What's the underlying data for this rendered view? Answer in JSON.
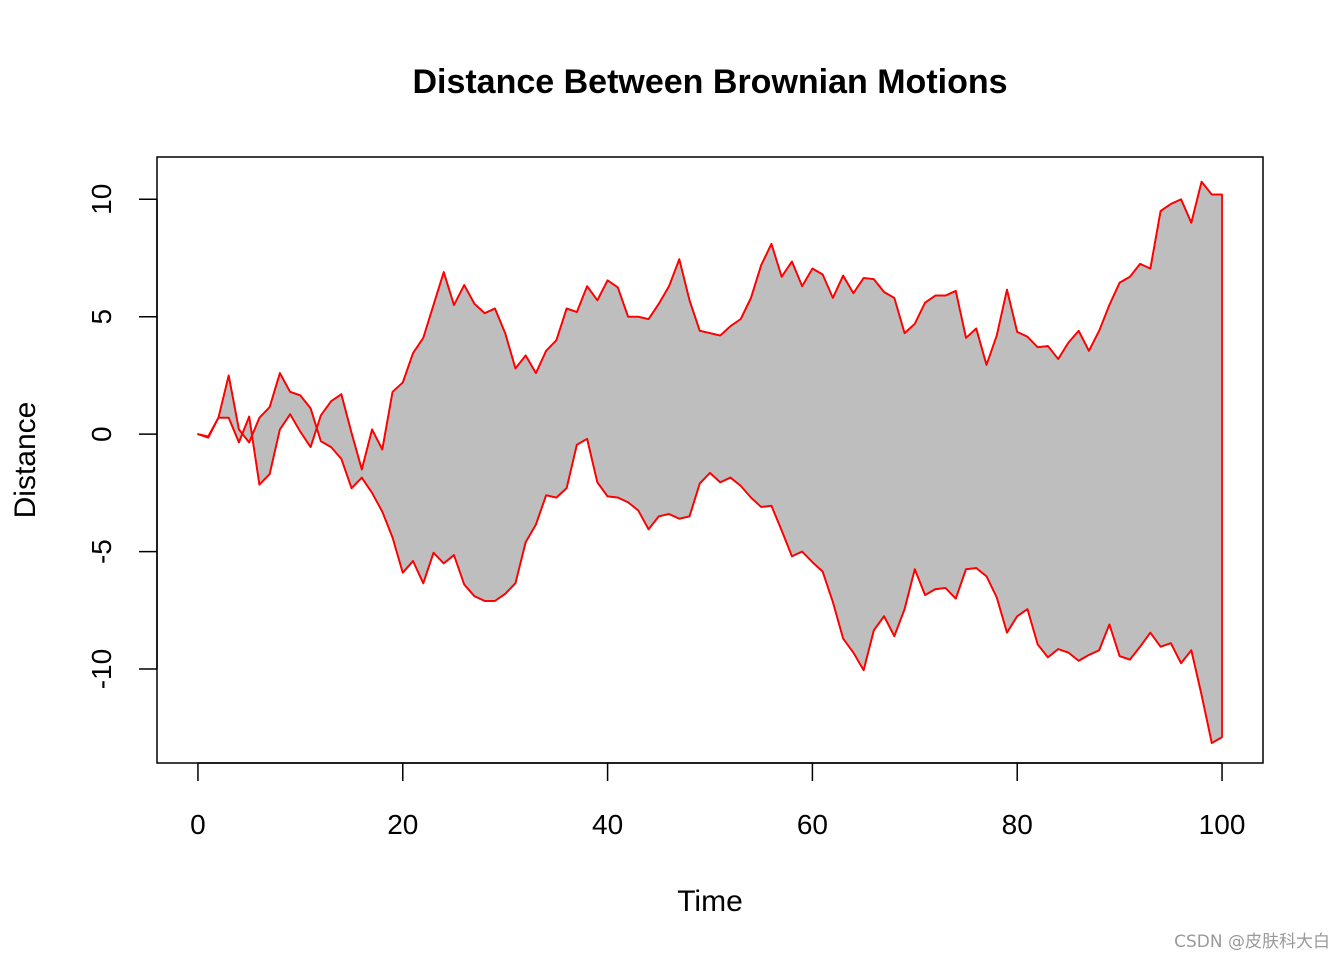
{
  "watermark": "CSDN @皮肤科大白",
  "colors": {
    "fill": "#bebebe",
    "line": "#ff0000",
    "frame": "#000000"
  },
  "chart_data": {
    "type": "area",
    "title": "Distance Between Brownian Motions",
    "xlabel": "Time",
    "ylabel": "Distance",
    "xlim": [
      -4,
      104
    ],
    "ylim": [
      -14,
      11.8
    ],
    "xticks": [
      0,
      20,
      40,
      60,
      80,
      100
    ],
    "yticks": [
      -10,
      -5,
      0,
      5,
      10
    ],
    "grid": false,
    "legend": "none",
    "x": [
      0,
      1,
      2,
      3,
      4,
      5,
      6,
      7,
      8,
      9,
      10,
      11,
      12,
      13,
      14,
      15,
      16,
      17,
      18,
      19,
      20,
      21,
      22,
      23,
      24,
      25,
      26,
      27,
      28,
      29,
      30,
      31,
      32,
      33,
      34,
      35,
      36,
      37,
      38,
      39,
      40,
      41,
      42,
      43,
      44,
      45,
      46,
      47,
      48,
      49,
      50,
      51,
      52,
      53,
      54,
      55,
      56,
      57,
      58,
      59,
      60,
      61,
      62,
      63,
      64,
      65,
      66,
      67,
      68,
      69,
      70,
      71,
      72,
      73,
      74,
      75,
      76,
      77,
      78,
      79,
      80,
      81,
      82,
      83,
      84,
      85,
      86,
      87,
      88,
      89,
      90,
      91,
      92,
      93,
      94,
      95,
      96,
      97,
      98,
      99,
      100
    ],
    "series": [
      {
        "values": [
          0,
          -0.15,
          0.7,
          2.5,
          0.2,
          -0.35,
          0.7,
          1.15,
          2.6,
          1.8,
          1.65,
          1.1,
          -0.3,
          -0.55,
          -1.05,
          -2.3,
          -1.85,
          -2.5,
          -3.3,
          -4.4,
          -5.9,
          -5.4,
          -6.35,
          -5.05,
          -5.5,
          -5.15,
          -6.4,
          -6.9,
          -7.1,
          -7.1,
          -6.8,
          -6.35,
          -4.6,
          -3.85,
          -2.6,
          -2.7,
          -2.3,
          -0.45,
          -0.2,
          -2.05,
          -2.65,
          -2.7,
          -2.9,
          -3.25,
          -4.05,
          -3.5,
          -3.4,
          -3.6,
          -3.5,
          -2.1,
          -1.65,
          -2.05,
          -1.85,
          -2.2,
          -2.7,
          -3.1,
          -3.05,
          -4.1,
          -5.2,
          -5.0,
          -5.45,
          -5.85,
          -7.15,
          -8.7,
          -9.3,
          -10.05,
          -8.35,
          -7.75,
          -8.6,
          -7.45,
          -5.75,
          -6.85,
          -6.6,
          -6.55,
          -7.0,
          -5.75,
          -5.7,
          -6.05,
          -6.95,
          -8.45,
          -7.75,
          -7.45,
          -8.95,
          -9.5,
          -9.15,
          -9.3,
          -9.65,
          -9.4,
          -9.2,
          -8.1,
          -9.45,
          -9.6,
          -9.05,
          -8.45,
          -9.05,
          -8.9,
          -9.75,
          -9.2,
          -11.1,
          -13.15,
          -12.9
        ]
      },
      {
        "values": [
          0,
          -0.1,
          0.7,
          0.7,
          -0.35,
          0.75,
          -2.15,
          -1.7,
          0.2,
          0.85,
          0.1,
          -0.55,
          0.8,
          1.4,
          1.7,
          0.05,
          -1.5,
          0.2,
          -0.65,
          1.8,
          2.2,
          3.45,
          4.1,
          5.5,
          6.9,
          5.5,
          6.35,
          5.55,
          5.15,
          5.35,
          4.3,
          2.8,
          3.35,
          2.6,
          3.55,
          4.0,
          5.35,
          5.2,
          6.3,
          5.7,
          6.55,
          6.25,
          5.0,
          5.0,
          4.9,
          5.55,
          6.3,
          7.45,
          5.7,
          4.4,
          4.3,
          4.2,
          4.6,
          4.9,
          5.8,
          7.2,
          8.1,
          6.7,
          7.35,
          6.3,
          7.05,
          6.8,
          5.8,
          6.75,
          6.0,
          6.65,
          6.6,
          6.05,
          5.8,
          4.3,
          4.7,
          5.6,
          5.9,
          5.9,
          6.1,
          4.1,
          4.5,
          2.95,
          4.2,
          6.15,
          4.35,
          4.15,
          3.7,
          3.75,
          3.2,
          3.9,
          4.4,
          3.55,
          4.4,
          5.5,
          6.45,
          6.7,
          7.25,
          7.05,
          9.5,
          9.8,
          10.0,
          9.0,
          10.75,
          10.2,
          10.2
        ]
      }
    ]
  }
}
